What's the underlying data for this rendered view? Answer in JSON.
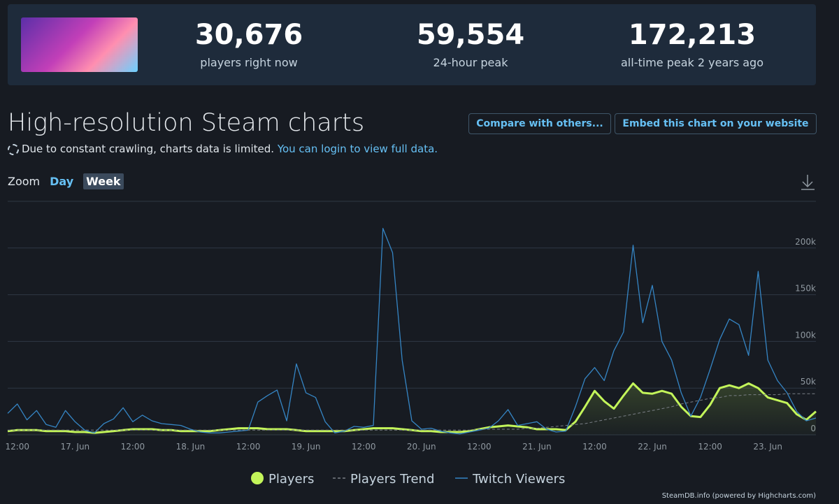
{
  "header": {
    "stats": [
      {
        "value": "30,676",
        "label": "players right now"
      },
      {
        "value": "59,554",
        "label": "24-hour peak"
      },
      {
        "value": "172,213",
        "label": "all-time peak 2 years ago"
      }
    ]
  },
  "section": {
    "title": "High-resolution Steam charts",
    "buttons": [
      "Compare with others...",
      "Embed this chart on your website"
    ],
    "notice": "Due to constant crawling, charts data is limited.",
    "notice_link": "You can login to view full data.",
    "zoom_label": "Zoom",
    "zoom_options": [
      "Day",
      "Week"
    ],
    "credit": "SteamDB.info (powered by Highcharts.com)"
  },
  "chart_data": {
    "type": "line",
    "categories": [
      null,
      "12:00",
      null,
      null,
      null,
      null,
      null,
      "17. Jun",
      null,
      null,
      null,
      null,
      null,
      "12:00",
      null,
      null,
      null,
      null,
      null,
      "18. Jun",
      null,
      null,
      null,
      null,
      null,
      "12:00",
      null,
      null,
      null,
      null,
      null,
      "19. Jun",
      null,
      null,
      null,
      null,
      null,
      "12:00",
      null,
      null,
      null,
      null,
      null,
      "20. Jun",
      null,
      null,
      null,
      null,
      null,
      "12:00",
      null,
      null,
      null,
      null,
      null,
      "21. Jun",
      null,
      null,
      null,
      null,
      null,
      "12:00",
      null,
      null,
      null,
      null,
      null,
      "22. Jun",
      null,
      null,
      null,
      null,
      null,
      "12:00",
      null,
      null,
      null,
      null,
      null,
      "23. Jun",
      null,
      null,
      null,
      null,
      null
    ],
    "ylim": [
      0,
      250000
    ],
    "yticks": [
      0,
      {
        "value": 50000,
        "label": "50k"
      },
      {
        "value": 100000,
        "label": "100k"
      },
      {
        "value": 150000,
        "label": "150k"
      },
      {
        "value": 200000,
        "label": "200k"
      }
    ],
    "grid": true,
    "series": [
      {
        "name": "Players",
        "color": "#c3f55a",
        "area": true,
        "line_style": "solid",
        "values": [
          4000,
          5000,
          5000,
          5000,
          4000,
          4000,
          4000,
          3000,
          3000,
          2000,
          3000,
          4000,
          5000,
          6000,
          6000,
          6000,
          5000,
          5000,
          4000,
          4000,
          4000,
          4000,
          5000,
          6000,
          7000,
          7000,
          7000,
          6000,
          6000,
          6000,
          5000,
          4000,
          4000,
          4000,
          4000,
          4000,
          5000,
          6000,
          7000,
          7000,
          7000,
          6000,
          5000,
          4000,
          4000,
          3000,
          3000,
          3000,
          4000,
          6000,
          8000,
          9000,
          10000,
          9000,
          8000,
          6000,
          6000,
          6000,
          5000,
          14000,
          30000,
          47000,
          36000,
          28000,
          42000,
          55000,
          45000,
          44000,
          47000,
          44000,
          30000,
          20000,
          19000,
          32000,
          50000,
          53000,
          50000,
          55000,
          50000,
          40000,
          37000,
          34000,
          22000,
          16000,
          25000
        ]
      },
      {
        "name": "Players Trend",
        "color": "#7a7f86",
        "area": false,
        "line_style": "dashed",
        "values": [
          5000,
          5000,
          5000,
          5000,
          5000,
          5000,
          5000,
          5000,
          5000,
          5000,
          5000,
          5000,
          5000,
          5000,
          5000,
          5000,
          5000,
          5000,
          5000,
          5000,
          5000,
          5000,
          5000,
          5000,
          5000,
          5000,
          5000,
          5000,
          5000,
          5000,
          5000,
          5000,
          5000,
          5000,
          5000,
          5000,
          5000,
          5000,
          5000,
          5000,
          5000,
          5000,
          5000,
          5000,
          5000,
          5000,
          5000,
          5000,
          5000,
          6000,
          6000,
          6000,
          6000,
          6000,
          7000,
          7000,
          8000,
          9000,
          10000,
          11000,
          12000,
          14000,
          16000,
          18000,
          20000,
          22000,
          24000,
          26000,
          28000,
          30000,
          33000,
          35000,
          37000,
          39000,
          40000,
          42000,
          42000,
          43000,
          43000,
          43000,
          43000,
          44000,
          44000,
          44000,
          44000
        ]
      },
      {
        "name": "Twitch Viewers",
        "color": "#3585c4",
        "area": false,
        "line_style": "solid",
        "values": [
          23000,
          33000,
          16000,
          26000,
          11000,
          8000,
          26000,
          14000,
          5000,
          2000,
          12000,
          17000,
          29000,
          14000,
          21000,
          15000,
          12000,
          11000,
          10000,
          6000,
          3000,
          2000,
          2000,
          3000,
          4000,
          5000,
          35000,
          42000,
          48000,
          15000,
          76000,
          45000,
          40000,
          14000,
          2000,
          4000,
          9000,
          8000,
          10000,
          221000,
          195000,
          80000,
          15000,
          6000,
          7000,
          4000,
          2000,
          1000,
          3000,
          5000,
          7000,
          15000,
          27000,
          10000,
          12000,
          14000,
          6000,
          3000,
          4000,
          30000,
          60000,
          72000,
          58000,
          90000,
          110000,
          203000,
          120000,
          160000,
          100000,
          80000,
          45000,
          20000,
          40000,
          70000,
          102000,
          124000,
          118000,
          85000,
          175000,
          80000,
          58000,
          45000,
          25000,
          15000,
          18000
        ]
      }
    ]
  }
}
